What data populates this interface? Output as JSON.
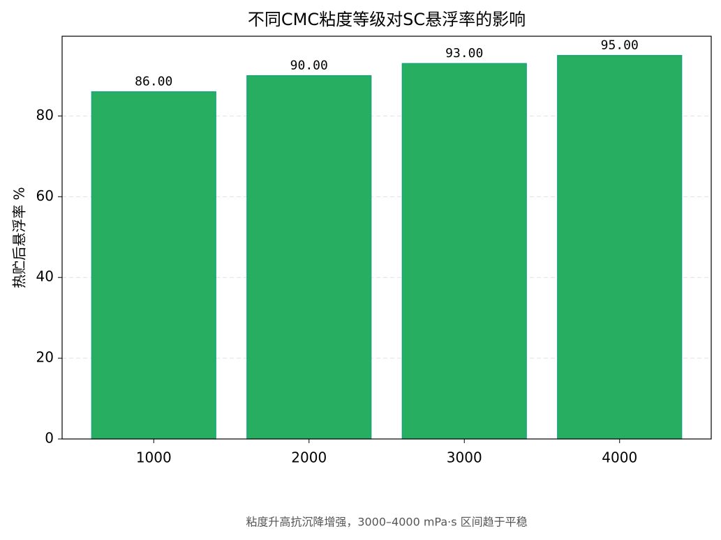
{
  "chart_data": {
    "type": "bar",
    "title": "不同CMC粘度等级对SC悬浮率的影响",
    "y_label": "热贮后悬浮率 %",
    "note": "粘度升高抗沉降增强，3000–4000 mPa·s 区间趋于平稳",
    "categories": [
      "1000",
      "2000",
      "3000",
      "4000"
    ],
    "values": [
      86,
      90,
      93,
      95
    ],
    "value_labels": [
      "86.00",
      "90.00",
      "93.00",
      "95.00"
    ],
    "color": "#27ae60",
    "edge_color": "#16a085",
    "ylim": [
      0,
      99.75
    ],
    "yticks": [
      0,
      20,
      40,
      60,
      80
    ],
    "grid": true
  }
}
